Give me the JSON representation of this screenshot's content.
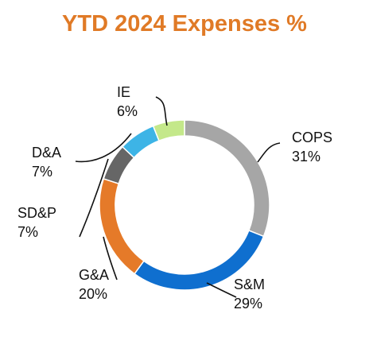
{
  "title": "YTD 2024 Expenses %",
  "title_color": "#E07A26",
  "chart_data": {
    "type": "pie",
    "title": "YTD 2024 Expenses %",
    "variant": "donut",
    "categories": [
      "COPS",
      "S&M",
      "G&A",
      "SD&P",
      "D&A",
      "IE"
    ],
    "values": [
      31,
      29,
      20,
      7,
      7,
      6
    ],
    "value_labels": [
      "31%",
      "29%",
      "20%",
      "7%",
      "7%",
      "6%"
    ],
    "colors": [
      "#A6A6A6",
      "#0F6FCF",
      "#E57A29",
      "#666666",
      "#3DB4E6",
      "#C4E88A"
    ],
    "legend": "none",
    "label_style": "outside-with-leader-lines"
  }
}
